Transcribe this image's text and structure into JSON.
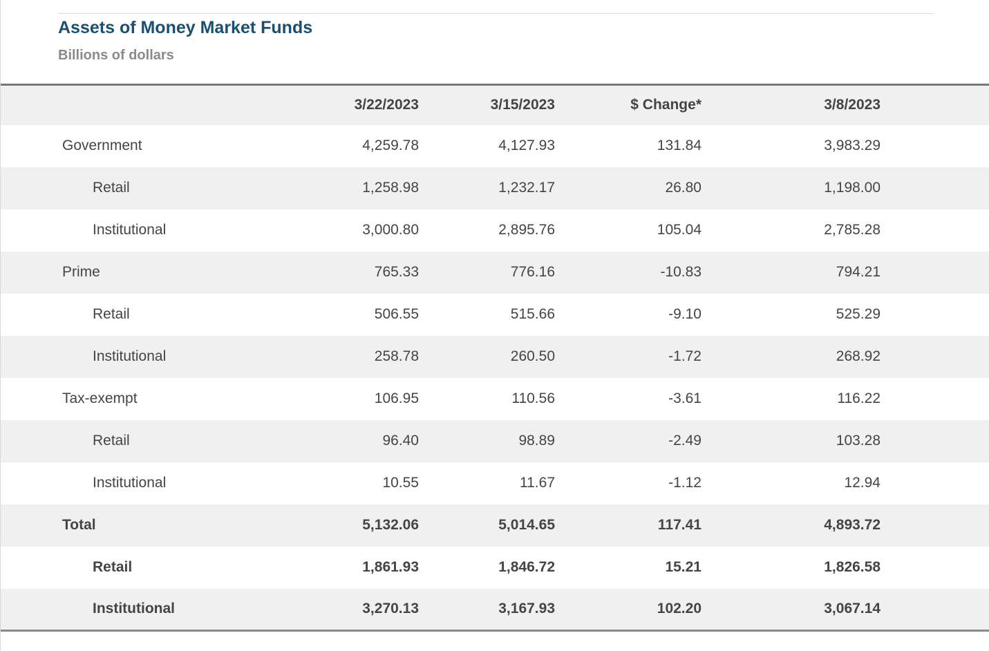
{
  "title": "Assets of Money Market Funds",
  "subtitle": "Billions of dollars",
  "columns": [
    "",
    "3/22/2023",
    "3/15/2023",
    "$ Change*",
    "3/8/2023"
  ],
  "rows": [
    {
      "label": "Government",
      "values": [
        "4,259.78",
        "4,127.93",
        "131.84",
        "3,983.29"
      ]
    },
    {
      "label": "Retail",
      "values": [
        "1,258.98",
        "1,232.17",
        "26.80",
        "1,198.00"
      ]
    },
    {
      "label": "Institutional",
      "values": [
        "3,000.80",
        "2,895.76",
        "105.04",
        "2,785.28"
      ]
    },
    {
      "label": "Prime",
      "values": [
        "765.33",
        "776.16",
        "-10.83",
        "794.21"
      ]
    },
    {
      "label": "Retail",
      "values": [
        "506.55",
        "515.66",
        "-9.10",
        "525.29"
      ]
    },
    {
      "label": "Institutional",
      "values": [
        "258.78",
        "260.50",
        "-1.72",
        "268.92"
      ]
    },
    {
      "label": "Tax-exempt",
      "values": [
        "106.95",
        "110.56",
        "-3.61",
        "116.22"
      ]
    },
    {
      "label": "Retail",
      "values": [
        "96.40",
        "98.89",
        "-2.49",
        "103.28"
      ]
    },
    {
      "label": "Institutional",
      "values": [
        "10.55",
        "11.67",
        "-1.12",
        "12.94"
      ]
    },
    {
      "label": "Total",
      "values": [
        "5,132.06",
        "5,014.65",
        "117.41",
        "4,893.72"
      ]
    },
    {
      "label": "Retail",
      "values": [
        "1,861.93",
        "1,846.72",
        "15.21",
        "1,826.58"
      ]
    },
    {
      "label": "Institutional",
      "values": [
        "3,270.13",
        "3,167.93",
        "102.20",
        "3,067.14"
      ]
    }
  ],
  "colors": {
    "title": "#1a4f73",
    "subtitle": "#8a8a8a",
    "stripe": "#f0f0f0",
    "text": "#444444"
  }
}
